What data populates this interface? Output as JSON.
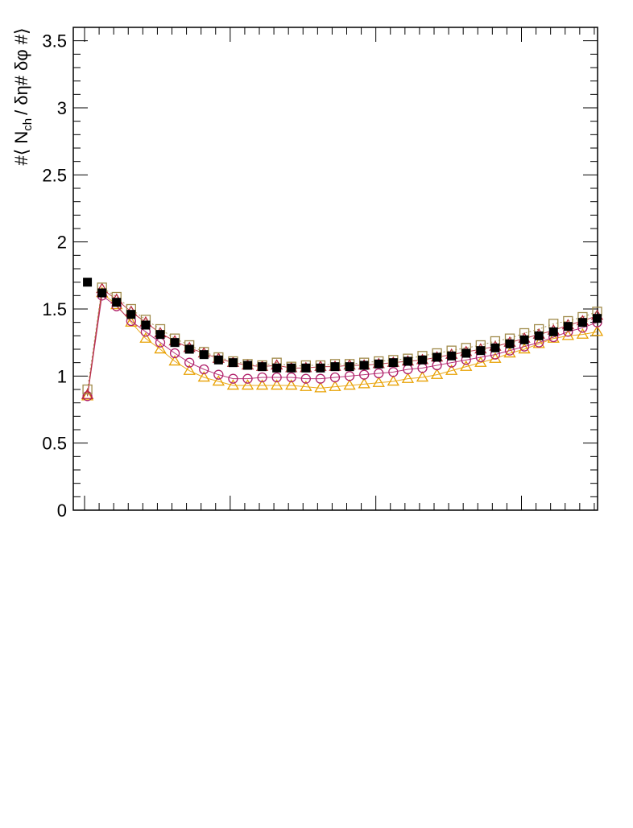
{
  "chart_data": {
    "type": "scatter",
    "title": "",
    "xlabel": "",
    "ylabel": "#⟨ N_{ch} / δη# δφ #⟩",
    "ylabel_parts": {
      "prefix": "#⟨ N",
      "subscript": "ch",
      "suffix": "/ δη# δφ #⟩"
    },
    "ylim": [
      0,
      3.6
    ],
    "yticks": [
      "0",
      "0.5",
      "1",
      "1.5",
      "2",
      "2.5",
      "3",
      "3.5"
    ],
    "xlim": [
      0,
      36
    ],
    "grid": false,
    "series": [
      {
        "marker": "filled-square",
        "color": "#000000",
        "x": [
          1,
          2,
          3,
          4,
          5,
          6,
          7,
          8,
          9,
          10,
          11,
          12,
          13,
          14,
          15,
          16,
          17,
          18,
          19,
          20,
          21,
          22,
          23,
          24,
          25,
          26,
          27,
          28,
          29,
          30,
          31,
          32,
          33,
          34,
          35,
          36
        ],
        "values": [
          1.7,
          1.62,
          1.55,
          1.46,
          1.38,
          1.31,
          1.25,
          1.2,
          1.16,
          1.12,
          1.1,
          1.08,
          1.07,
          1.06,
          1.06,
          1.06,
          1.06,
          1.07,
          1.07,
          1.08,
          1.09,
          1.1,
          1.11,
          1.12,
          1.14,
          1.15,
          1.17,
          1.19,
          1.21,
          1.24,
          1.27,
          1.3,
          1.33,
          1.37,
          1.4,
          1.43
        ]
      },
      {
        "marker": "open-square",
        "color": "#a08a4a",
        "x": [
          1,
          2,
          3,
          4,
          5,
          6,
          7,
          8,
          9,
          10,
          11,
          12,
          13,
          14,
          15,
          16,
          17,
          18,
          19,
          20,
          21,
          22,
          23,
          24,
          25,
          26,
          27,
          28,
          29,
          30,
          31,
          32,
          33,
          34,
          35,
          36
        ],
        "values": [
          0.9,
          1.66,
          1.59,
          1.5,
          1.42,
          1.35,
          1.28,
          1.23,
          1.18,
          1.14,
          1.11,
          1.09,
          1.08,
          1.1,
          1.07,
          1.08,
          1.08,
          1.09,
          1.09,
          1.1,
          1.11,
          1.12,
          1.13,
          1.15,
          1.17,
          1.19,
          1.21,
          1.23,
          1.26,
          1.28,
          1.32,
          1.35,
          1.39,
          1.41,
          1.44,
          1.48
        ]
      },
      {
        "marker": "open-triangle",
        "color": "#b8283a",
        "x": [
          1,
          2,
          3,
          4,
          5,
          6,
          7,
          8,
          9,
          10,
          11,
          12,
          13,
          14,
          15,
          16,
          17,
          18,
          19,
          20,
          21,
          22,
          23,
          24,
          25,
          26,
          27,
          28,
          29,
          30,
          31,
          32,
          33,
          34,
          35,
          36
        ],
        "values": [
          0.86,
          1.65,
          1.57,
          1.48,
          1.4,
          1.32,
          1.26,
          1.21,
          1.17,
          1.13,
          1.1,
          1.08,
          1.07,
          1.08,
          1.06,
          1.06,
          1.07,
          1.07,
          1.08,
          1.08,
          1.09,
          1.1,
          1.11,
          1.12,
          1.14,
          1.16,
          1.18,
          1.2,
          1.22,
          1.25,
          1.28,
          1.31,
          1.34,
          1.38,
          1.41,
          1.45
        ]
      },
      {
        "marker": "open-circle",
        "color": "#b0206a",
        "x": [
          1,
          2,
          3,
          4,
          5,
          6,
          7,
          8,
          9,
          10,
          11,
          12,
          13,
          14,
          15,
          16,
          17,
          18,
          19,
          20,
          21,
          22,
          23,
          24,
          25,
          26,
          27,
          28,
          29,
          30,
          31,
          32,
          33,
          34,
          35,
          36
        ],
        "values": [
          0.85,
          1.6,
          1.52,
          1.41,
          1.33,
          1.25,
          1.17,
          1.1,
          1.05,
          1.01,
          0.98,
          0.98,
          0.99,
          0.99,
          0.99,
          0.98,
          0.98,
          0.99,
          1.0,
          1.01,
          1.02,
          1.03,
          1.05,
          1.06,
          1.08,
          1.1,
          1.12,
          1.14,
          1.16,
          1.19,
          1.22,
          1.25,
          1.29,
          1.33,
          1.36,
          1.4
        ]
      },
      {
        "marker": "open-triangle",
        "color": "#e8a000",
        "x": [
          1,
          2,
          3,
          4,
          5,
          6,
          7,
          8,
          9,
          10,
          11,
          12,
          13,
          14,
          15,
          16,
          17,
          18,
          19,
          20,
          21,
          22,
          23,
          24,
          25,
          26,
          27,
          28,
          29,
          30,
          31,
          32,
          33,
          34,
          35,
          36
        ],
        "values": [
          0.85,
          1.62,
          1.53,
          1.4,
          1.28,
          1.2,
          1.11,
          1.04,
          0.99,
          0.96,
          0.93,
          0.93,
          0.93,
          0.93,
          0.93,
          0.92,
          0.91,
          0.92,
          0.93,
          0.94,
          0.95,
          0.96,
          0.98,
          0.99,
          1.01,
          1.04,
          1.07,
          1.1,
          1.13,
          1.17,
          1.2,
          1.24,
          1.28,
          1.3,
          1.31,
          1.33
        ]
      }
    ]
  }
}
